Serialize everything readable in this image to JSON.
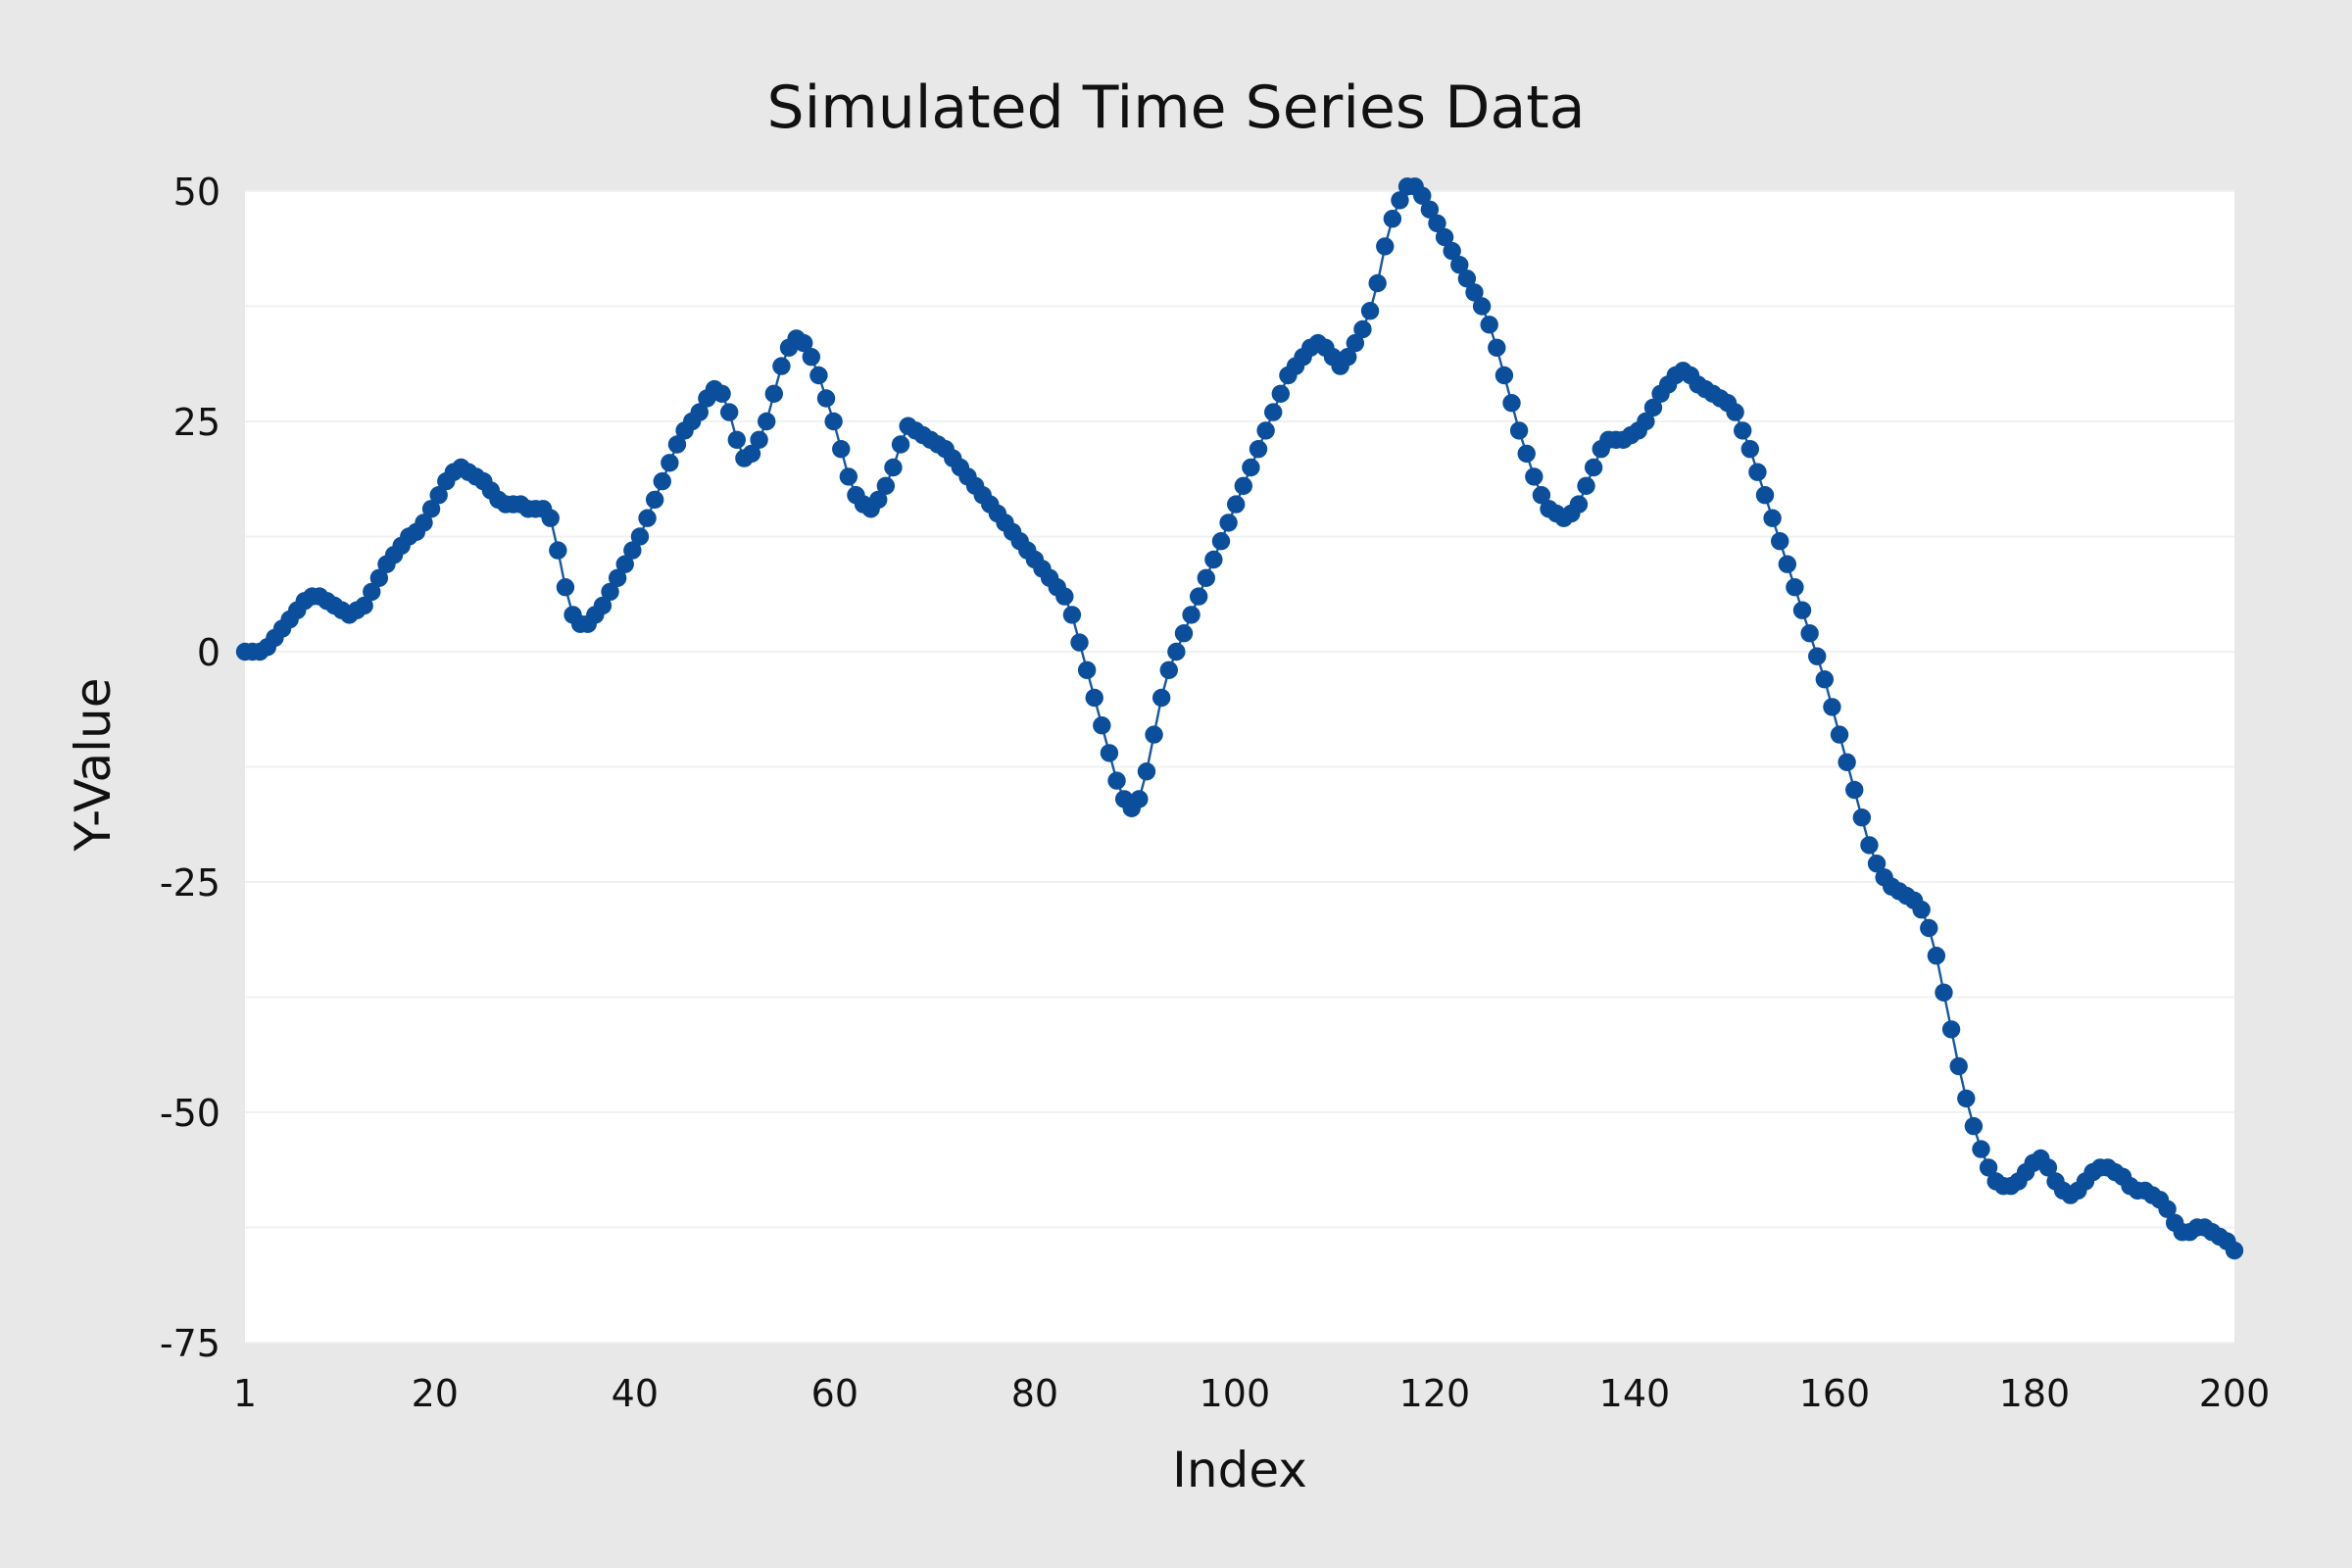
{
  "chart_data": {
    "type": "line",
    "title": "Simulated Time Series Data",
    "xlabel": "Index",
    "ylabel": "Y-Value",
    "xlim": [
      1,
      200
    ],
    "ylim": [
      -75,
      50
    ],
    "x_ticks": [
      1,
      20,
      40,
      60,
      80,
      100,
      120,
      140,
      160,
      180,
      200
    ],
    "y_ticks": [
      50,
      25,
      0,
      -25,
      -50,
      -75
    ],
    "grid": "horizontal minor gridlines, very light",
    "legend": "none",
    "series": [
      {
        "values": [
          0,
          0,
          0,
          0.5,
          1.5,
          2.5,
          3.5,
          4.5,
          5.5,
          6,
          6,
          5.5,
          5,
          4.5,
          4,
          4.5,
          5,
          6.5,
          8,
          9.5,
          10.5,
          11.5,
          12.5,
          13,
          14,
          15.5,
          17,
          18.5,
          19.5,
          20,
          19.5,
          19,
          18.5,
          17.5,
          16.5,
          16,
          16,
          16,
          15.5,
          15.5,
          15.5,
          14.5,
          11,
          7,
          4,
          3,
          3,
          4,
          5,
          6.5,
          8,
          9.5,
          11,
          12.5,
          14.5,
          16.5,
          18.5,
          20.5,
          22.5,
          24,
          25,
          26,
          27.5,
          28.5,
          28,
          26,
          23,
          21,
          21.5,
          23,
          25,
          28,
          31,
          33,
          34,
          33.5,
          32,
          30,
          27.5,
          25,
          22,
          19,
          17,
          16,
          15.5,
          16.5,
          18,
          20,
          22.5,
          24.5,
          24,
          23.5,
          23,
          22.5,
          22,
          21,
          20,
          19,
          18,
          17,
          16,
          15,
          14,
          13,
          12,
          11,
          10,
          9,
          8,
          7,
          6,
          4,
          1,
          -2,
          -5,
          -8,
          -11,
          -14,
          -16,
          -17,
          -16,
          -13,
          -9,
          -5,
          -2,
          0,
          2,
          4,
          6,
          8,
          10,
          12,
          14,
          16,
          18,
          20,
          22,
          24,
          26,
          28,
          30,
          31,
          32,
          33,
          33.5,
          33,
          32,
          31,
          32,
          33.5,
          35,
          37,
          40,
          44,
          47,
          49,
          50.5,
          50.5,
          49.5,
          48,
          46.5,
          45,
          43.5,
          42,
          40.5,
          39,
          37.5,
          35.5,
          33,
          30,
          27,
          24,
          21.5,
          19,
          17,
          15.5,
          15,
          14.5,
          15,
          16,
          18,
          20,
          22,
          23,
          23,
          23,
          23.5,
          24,
          25,
          26.5,
          28,
          29,
          30,
          30.5,
          30,
          29,
          28.5,
          28,
          27.5,
          27,
          26,
          24,
          22,
          19.5,
          17,
          14.5,
          12,
          9.5,
          7,
          4.5,
          2,
          -0.5,
          -3,
          -6,
          -9,
          -12,
          -15,
          -18,
          -21,
          -23,
          -24.5,
          -25.5,
          -26,
          -26.5,
          -27,
          -28,
          -30,
          -33,
          -37,
          -41,
          -45,
          -48.5,
          -51.5,
          -54,
          -56,
          -57.5,
          -58,
          -58,
          -57.5,
          -56.5,
          -55.5,
          -55,
          -56,
          -57.5,
          -58.5,
          -59,
          -58.5,
          -57.5,
          -56.5,
          -56,
          -56,
          -56.5,
          -57,
          -58,
          -58.5,
          -58.5,
          -59,
          -59.5,
          -60.5,
          -62,
          -63,
          -63,
          -62.5,
          -62.5,
          -63,
          -63.5,
          -64,
          -65
        ],
        "color": "#0b4f9c"
      }
    ]
  }
}
